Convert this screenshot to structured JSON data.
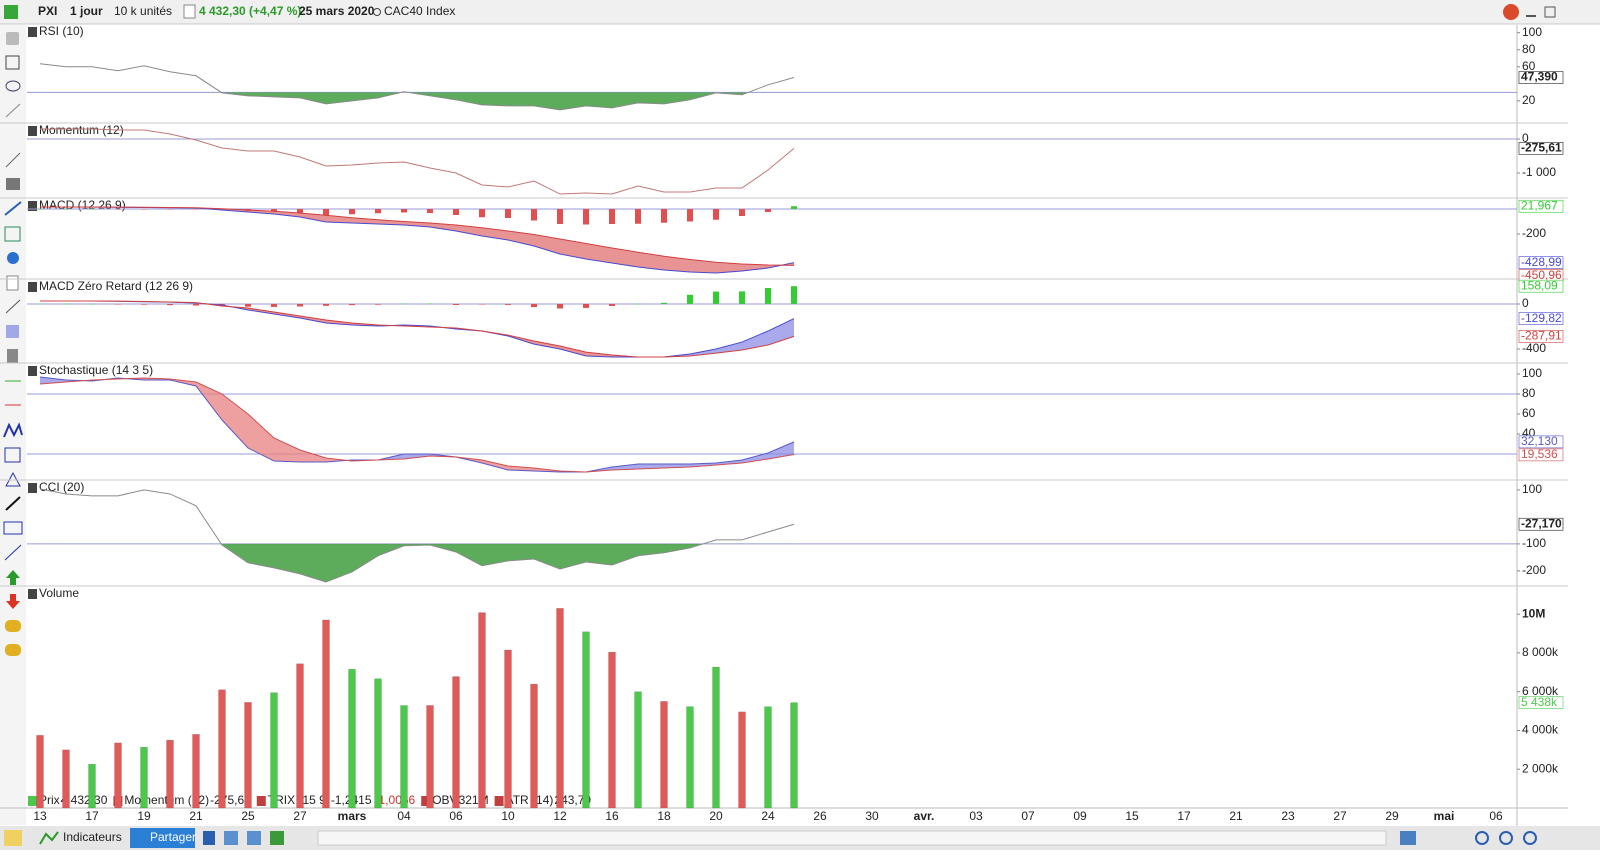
{
  "toolbar": {
    "symbol": "PXI",
    "period": "1 jour",
    "units": "10 k unités",
    "price": "4 432,30 (+4,47 %)",
    "date": "25 mars 2020",
    "index": "CAC40 Index"
  },
  "bottom_toolbar": {
    "indicators": "Indicateurs",
    "share": "Partager"
  },
  "x_labels": [
    "13",
    "17",
    "19",
    "21",
    "25",
    "27",
    "mars",
    "04",
    "06",
    "10",
    "12",
    "16",
    "18",
    "20",
    "24",
    "26",
    "30",
    "avr.",
    "03",
    "07",
    "09",
    "15",
    "17",
    "21",
    "23",
    "27",
    "29",
    "mai",
    "06"
  ],
  "footer_legend": [
    [
      "Prix",
      "4 432,30"
    ],
    [
      "Momentum (12)",
      "-275,61"
    ],
    [
      "TRIX (15 9)",
      "-1,2415",
      "-1,0066"
    ],
    [
      "OBV",
      "321M"
    ],
    [
      "ATR (14)",
      "243,79"
    ]
  ],
  "chart_data": [
    {
      "type": "line",
      "title": "RSI (10)",
      "ylim": [
        -6,
        109
      ],
      "yticks": [
        100,
        80,
        60,
        20
      ],
      "reference_lines": [
        30
      ],
      "fill_below_reference": "#3f9e3f",
      "series": [
        {
          "name": "RSI",
          "color": "#8a8a8a",
          "last_label": "47,390",
          "values": [
            63.5,
            60,
            60,
            55.3,
            61.2,
            54.1,
            49.4,
            29.4,
            25.9,
            24.7,
            23.5,
            16.5,
            20,
            23.5,
            30.6,
            25.9,
            21.2,
            15.3,
            14.1,
            14.1,
            9.4,
            14.1,
            11.8,
            17.6,
            16.5,
            21.2,
            29.4,
            27.1,
            38.8,
            47.39
          ]
        }
      ]
    },
    {
      "type": "line",
      "title": "Momentum (12)",
      "ylim": [
        -1735,
        441
      ],
      "yticks": [
        0,
        {
          "value": -1000,
          "label": "-1 000"
        }
      ],
      "reference_lines": [
        0
      ],
      "series": [
        {
          "name": "Momentum",
          "color": "#c07878",
          "last_label": "-275,61",
          "values": [
            294,
            294,
            294,
            265,
            265,
            147,
            -29,
            -265,
            -353,
            -353,
            -529,
            -794,
            -765,
            -706,
            -676,
            -853,
            -1000,
            -1353,
            -1412,
            -1235,
            -1618,
            -1588,
            -1618,
            -1382,
            -1559,
            -1559,
            -1441,
            -1441,
            -912,
            -275.61
          ]
        }
      ]
    },
    {
      "type": "macd",
      "title": "MACD (12 26 9)",
      "ylim": [
        -560,
        80
      ],
      "yticks": [
        -200
      ],
      "reference_lines": [
        0
      ],
      "ribbon_colors": [
        "#8c8ce6",
        "#e07070"
      ],
      "histogram": {
        "up_color": "#33cc33",
        "down_color": "#e05050",
        "last_label": "21,967",
        "values": [
          0,
          0,
          1,
          -1,
          -2,
          -2,
          -2,
          -10,
          -16,
          -22,
          -32,
          -54,
          -42,
          -34,
          -28,
          -32,
          -48,
          -66,
          -72,
          -92,
          -120,
          -124,
          -120,
          -118,
          -110,
          -100,
          -86,
          -56,
          -24,
          21.967
        ]
      },
      "series": [
        {
          "name": "MACD",
          "color": "#4a4ad0",
          "last_label": "-428,99",
          "values": [
            16,
            16,
            16,
            14,
            12,
            10,
            8,
            -8,
            -24,
            -40,
            -64,
            -104,
            -112,
            -120,
            -128,
            -144,
            -176,
            -216,
            -248,
            -296,
            -360,
            -400,
            -432,
            -464,
            -488,
            -504,
            -512,
            -496,
            -472,
            -428.99
          ]
        },
        {
          "name": "Signal",
          "color": "#d04040",
          "last_label": "-450,96",
          "values": [
            16,
            16,
            15,
            15,
            14,
            12,
            10,
            2,
            -8,
            -18,
            -32,
            -50,
            -70,
            -86,
            -100,
            -112,
            -128,
            -150,
            -176,
            -204,
            -240,
            -276,
            -312,
            -346,
            -378,
            -404,
            -426,
            -440,
            -448,
            -450.96
          ]
        }
      ]
    },
    {
      "type": "macd",
      "title": "MACD Zéro Retard (12 26 9)",
      "ylim": [
        -524,
        213
      ],
      "yticks": [
        0,
        -400
      ],
      "reference_lines": [
        0
      ],
      "ribbon_colors": [
        "#8c8ce6",
        "#e07070"
      ],
      "histogram": {
        "up_color": "#33cc33",
        "down_color": "#e05050",
        "last_label": "158,09",
        "values": [
          2,
          2,
          1,
          -3,
          -6,
          -10,
          -14,
          -20,
          -24,
          -26,
          -22,
          -16,
          -10,
          -6,
          3,
          4,
          -9,
          -2,
          -8,
          -27,
          -40,
          -35,
          -18,
          2,
          10,
          82,
          110,
          112,
          142,
          158.09
        ]
      },
      "series": [
        {
          "name": "MACD ZR",
          "color": "#4a4ad0",
          "last_label": "-129,82",
          "values": [
            27,
            27,
            27,
            24,
            20,
            16,
            9,
            -9,
            -53,
            -89,
            -124,
            -169,
            -187,
            -196,
            -187,
            -196,
            -222,
            -240,
            -284,
            -356,
            -400,
            -462,
            -471,
            -471,
            -471,
            -444,
            -400,
            -338,
            -240,
            -129.82
          ]
        },
        {
          "name": "Signal ZR",
          "color": "#d04040",
          "last_label": "-287,91",
          "values": [
            27,
            27,
            27,
            25,
            22,
            18,
            12,
            -18,
            -36,
            -71,
            -107,
            -142,
            -169,
            -187,
            -196,
            -204,
            -213,
            -240,
            -276,
            -329,
            -373,
            -427,
            -453,
            -471,
            -471,
            -462,
            -436,
            -409,
            -364,
            -287.91
          ]
        }
      ]
    },
    {
      "type": "stochastic",
      "title": "Stochastique (14 3 5)",
      "ylim": [
        -6,
        110
      ],
      "yticks": [
        100,
        80,
        60,
        40
      ],
      "reference_lines": [
        80,
        20
      ],
      "ribbon_colors": [
        "#8c8ce6",
        "#e88080"
      ],
      "series": [
        {
          "name": "%K",
          "color": "#5a5ac8",
          "last_label": "32,130",
          "values": [
            97,
            94,
            93,
            96,
            94,
            94,
            88,
            54,
            26,
            13,
            12,
            12,
            14,
            14,
            20,
            20,
            17,
            11,
            4,
            3,
            2,
            2,
            7,
            10,
            10,
            10,
            11,
            14,
            21,
            32.13
          ]
        },
        {
          "name": "%D",
          "color": "#d05050",
          "last_label": "19,536",
          "values": [
            90,
            92,
            94,
            95,
            96,
            95,
            92,
            80,
            60,
            36,
            24,
            16,
            13,
            14,
            15,
            18,
            17,
            14,
            8,
            6,
            3,
            2,
            4,
            5,
            6,
            7,
            9,
            11,
            15,
            19.536
          ]
        }
      ]
    },
    {
      "type": "line",
      "title": "CCI (20)",
      "ylim": [
        -256,
        133
      ],
      "yticks": [
        100,
        -100,
        -200
      ],
      "reference_lines": [
        -100
      ],
      "fill_below_reference": "#3f9e3f",
      "series": [
        {
          "name": "CCI",
          "color": "#8a8a8a",
          "last_label": "-27,170",
          "values": [
            104,
            85,
            78,
            78,
            100,
            85,
            41,
            -104,
            -170,
            -189,
            -211,
            -241,
            -204,
            -144,
            -107,
            -104,
            -130,
            -181,
            -163,
            -156,
            -193,
            -167,
            -178,
            -144,
            -133,
            -115,
            -85,
            -85,
            -56,
            -27.17
          ]
        }
      ]
    },
    {
      "type": "bar",
      "title": "Volume",
      "ylim": [
        0,
        11400000
      ],
      "yticks": [
        {
          "value": 10000000,
          "label": "10M"
        },
        {
          "value": 8000000,
          "label": "8 000k"
        },
        {
          "value": 6000000,
          "label": "6 000k"
        },
        {
          "value": 4000000,
          "label": "4 000k"
        },
        {
          "value": 2000000,
          "label": "2 000k"
        }
      ],
      "last_label": "5 438k",
      "values": [
        3750000,
        3000000,
        2260000,
        3360000,
        3140000,
        3500000,
        3800000,
        6100000,
        5450000,
        5950000,
        7440000,
        9700000,
        7160000,
        6670000,
        5290000,
        5290000,
        6780000,
        10080000,
        8150000,
        6390000,
        10300000,
        9090000,
        8040000,
        6000000,
        5500000,
        5230000,
        7270000,
        4960000,
        5230000,
        5438000
      ],
      "colors": [
        "#e05a5a",
        "#e05a5a",
        "#4cc84c",
        "#e05a5a",
        "#4cc84c",
        "#e05a5a",
        "#e05a5a",
        "#e05a5a",
        "#e05a5a",
        "#4cc84c",
        "#e05a5a",
        "#e05a5a",
        "#4cc84c",
        "#4cc84c",
        "#4cc84c",
        "#e05a5a",
        "#e05a5a",
        "#e05a5a",
        "#e05a5a",
        "#e05a5a",
        "#e05a5a",
        "#4cc84c",
        "#e05a5a",
        "#4cc84c",
        "#e05a5a",
        "#4cc84c",
        "#4cc84c",
        "#e05a5a",
        "#4cc84c",
        "#4cc84c"
      ]
    }
  ]
}
